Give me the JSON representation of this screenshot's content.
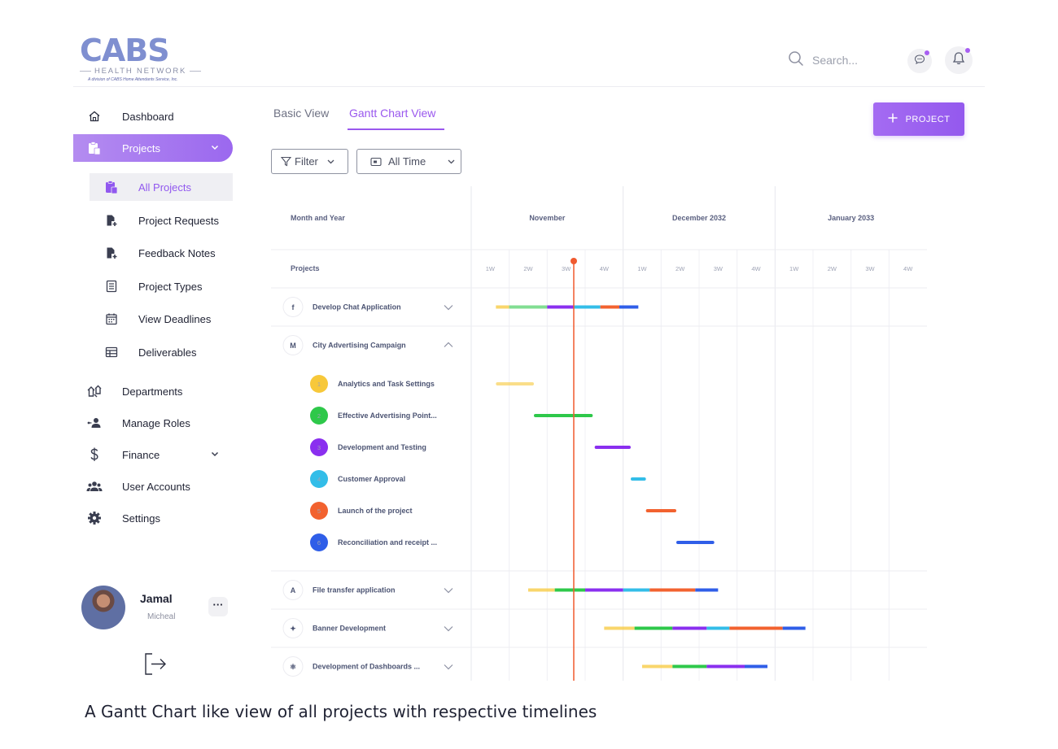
{
  "logo": {
    "main": "CABS",
    "sub": "HEALTH NETWORK",
    "tiny": "A division of CABS Home Attendants Service, Inc."
  },
  "search": {
    "placeholder": "Search..."
  },
  "sidebar": {
    "items": [
      {
        "label": "Dashboard",
        "icon": "home-icon"
      },
      {
        "label": "Projects",
        "icon": "clipboard-icon",
        "active": true
      },
      {
        "label": "Departments",
        "icon": "departments-icon"
      },
      {
        "label": "Manage Roles",
        "icon": "manage-roles-icon"
      },
      {
        "label": "Finance",
        "icon": "dollar-icon"
      },
      {
        "label": "User Accounts",
        "icon": "users-icon"
      },
      {
        "label": "Settings",
        "icon": "gear-icon"
      }
    ],
    "project_sub_items": [
      {
        "label": "All Projects",
        "active": true
      },
      {
        "label": "Project Requests"
      },
      {
        "label": "Feedback Notes"
      },
      {
        "label": "Project Types"
      },
      {
        "label": "View Deadlines"
      },
      {
        "label": "Deliverables"
      }
    ]
  },
  "user": {
    "name": "Jamal",
    "role": "Micheal",
    "more": "···"
  },
  "tabs": [
    {
      "label": "Basic View"
    },
    {
      "label": "Gantt Chart View",
      "active": true
    }
  ],
  "toolbar": {
    "add_project": "PROJECT",
    "filter": "Filter",
    "time_range": "All Time"
  },
  "gantt": {
    "header_month_label": "Month and Year",
    "header_projects_label": "Projects",
    "months": [
      "November",
      "December 2032",
      "January 2033"
    ],
    "weeks": [
      "1W",
      "2W",
      "3W",
      "4W",
      "1W",
      "2W",
      "3W",
      "4W",
      "1W",
      "2W",
      "3W",
      "4W"
    ],
    "today_week_position": 2.7,
    "colors": {
      "yellow": "#f7c83a",
      "green": "#2ec84a",
      "purple": "#8a2fef",
      "cyan": "#33bde8",
      "orange": "#f2622f",
      "blue": "#2f5ee8",
      "today": "#f05a2f"
    },
    "projects": [
      {
        "name": "Develop Chat Application",
        "icon": "facebook-icon",
        "expanded": false,
        "segments": [
          [
            "yellow",
            0.65,
            1.0
          ],
          [
            "green",
            1.0,
            2.0
          ],
          [
            "purple",
            2.0,
            2.7
          ],
          [
            "cyan",
            2.7,
            3.4
          ],
          [
            "orange",
            3.4,
            3.9
          ],
          [
            "blue",
            3.9,
            4.4
          ]
        ]
      },
      {
        "name": "City Advertising Campaign",
        "icon": "mcdonalds-icon",
        "expanded": true,
        "tasks": [
          {
            "num": "1",
            "name": "Analytics and Task Settings",
            "color": "yellow",
            "start": 0.65,
            "end": 1.65
          },
          {
            "num": "2",
            "name": "Effective Advertising Point...",
            "color": "green",
            "start": 1.65,
            "end": 3.2
          },
          {
            "num": "3",
            "name": "Development and Testing",
            "color": "purple",
            "start": 3.25,
            "end": 4.2
          },
          {
            "num": "4",
            "name": "Customer Approval",
            "color": "cyan",
            "start": 4.2,
            "end": 4.6
          },
          {
            "num": "5",
            "name": "Launch of the project",
            "color": "orange",
            "start": 4.6,
            "end": 5.4
          },
          {
            "num": "6",
            "name": "Reconciliation and receipt ...",
            "color": "blue",
            "start": 5.4,
            "end": 6.4
          }
        ]
      },
      {
        "name": "File transfer application",
        "icon": "google-ads-icon",
        "expanded": false,
        "segments": [
          [
            "yellow",
            1.5,
            2.2
          ],
          [
            "green",
            2.2,
            3.0
          ],
          [
            "purple",
            3.0,
            4.0
          ],
          [
            "cyan",
            4.0,
            4.7
          ],
          [
            "orange",
            4.7,
            5.9
          ],
          [
            "blue",
            5.9,
            6.5
          ]
        ]
      },
      {
        "name": "Banner Development",
        "icon": "twitter-icon",
        "expanded": false,
        "segments": [
          [
            "yellow",
            3.5,
            4.3
          ],
          [
            "green",
            4.3,
            5.3
          ],
          [
            "purple",
            5.3,
            6.2
          ],
          [
            "cyan",
            6.2,
            6.8
          ],
          [
            "orange",
            6.8,
            8.2
          ],
          [
            "blue",
            8.2,
            8.8
          ]
        ]
      },
      {
        "name": "Development of Dashboards ...",
        "icon": "react-icon",
        "expanded": false,
        "segments": [
          [
            "yellow",
            4.5,
            5.3
          ],
          [
            "green",
            5.3,
            6.2
          ],
          [
            "purple",
            6.2,
            7.2
          ],
          [
            "blue",
            7.2,
            7.8
          ]
        ]
      }
    ]
  },
  "caption": "A Gantt Chart like view of all projects with respective timelines"
}
